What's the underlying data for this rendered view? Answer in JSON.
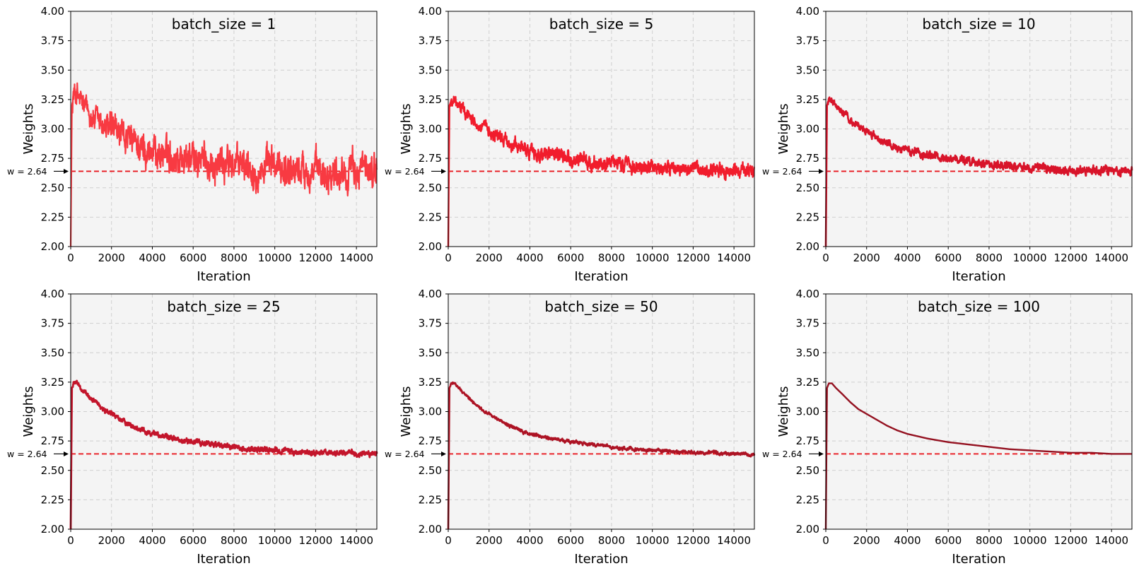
{
  "chart_data": [
    {
      "type": "line",
      "title": "batch_size = 1",
      "xlabel": "Iteration",
      "ylabel": "Weights",
      "xlim": [
        0,
        15000
      ],
      "ylim": [
        2.0,
        4.0
      ],
      "xticks": [
        "0",
        "2000",
        "4000",
        "6000",
        "8000",
        "10000",
        "12000",
        "14000"
      ],
      "yticks": [
        "2.00",
        "2.25",
        "2.50",
        "2.75",
        "3.00",
        "3.25",
        "3.50",
        "3.75",
        "4.00"
      ],
      "grid": true,
      "line_color": "#f83a42",
      "reference": {
        "y": 2.64,
        "label": "w = 2.64",
        "color": "#e8181e"
      },
      "series": [
        {
          "x": [
            0,
            60,
            150,
            300,
            500,
            800,
            1200,
            1600,
            2000,
            2500,
            3000,
            3500,
            4000,
            4500,
            5000,
            6000,
            7000,
            8000,
            9000,
            10000,
            11000,
            12000,
            13000,
            14000,
            15000
          ],
          "y": [
            2.0,
            3.2,
            3.3,
            3.3,
            3.22,
            3.15,
            3.08,
            3.02,
            2.98,
            2.93,
            2.88,
            2.84,
            2.81,
            2.79,
            2.77,
            2.74,
            2.72,
            2.7,
            2.68,
            2.67,
            2.66,
            2.65,
            2.65,
            2.64,
            2.64
          ]
        }
      ]
    },
    {
      "type": "line",
      "title": "batch_size = 5",
      "xlabel": "Iteration",
      "ylabel": "Weights",
      "xlim": [
        0,
        15000
      ],
      "ylim": [
        2.0,
        4.0
      ],
      "xticks": [
        "0",
        "2000",
        "4000",
        "6000",
        "8000",
        "10000",
        "12000",
        "14000"
      ],
      "yticks": [
        "2.00",
        "2.25",
        "2.50",
        "2.75",
        "3.00",
        "3.25",
        "3.50",
        "3.75",
        "4.00"
      ],
      "grid": true,
      "line_color": "#f11c2c",
      "reference": {
        "y": 2.64,
        "label": "w = 2.64",
        "color": "#e8181e"
      },
      "series": [
        {
          "x": [
            0,
            60,
            150,
            300,
            500,
            800,
            1200,
            1600,
            2000,
            2500,
            3000,
            3500,
            4000,
            4500,
            5000,
            6000,
            7000,
            8000,
            9000,
            10000,
            11000,
            12000,
            13000,
            14000,
            15000
          ],
          "y": [
            2.0,
            3.2,
            3.24,
            3.24,
            3.2,
            3.15,
            3.08,
            3.02,
            2.98,
            2.93,
            2.88,
            2.84,
            2.81,
            2.79,
            2.77,
            2.74,
            2.72,
            2.7,
            2.68,
            2.67,
            2.66,
            2.65,
            2.65,
            2.64,
            2.64
          ]
        }
      ]
    },
    {
      "type": "line",
      "title": "batch_size = 10",
      "xlabel": "Iteration",
      "ylabel": "Weights",
      "xlim": [
        0,
        15000
      ],
      "ylim": [
        2.0,
        4.0
      ],
      "xticks": [
        "0",
        "2000",
        "4000",
        "6000",
        "8000",
        "10000",
        "12000",
        "14000"
      ],
      "yticks": [
        "2.00",
        "2.25",
        "2.50",
        "2.75",
        "3.00",
        "3.25",
        "3.50",
        "3.75",
        "4.00"
      ],
      "grid": true,
      "line_color": "#d8142a",
      "reference": {
        "y": 2.64,
        "label": "w = 2.64",
        "color": "#e8181e"
      },
      "series": [
        {
          "x": [
            0,
            60,
            150,
            300,
            500,
            800,
            1200,
            1600,
            2000,
            2500,
            3000,
            3500,
            4000,
            4500,
            5000,
            6000,
            7000,
            8000,
            9000,
            10000,
            11000,
            12000,
            13000,
            14000,
            15000
          ],
          "y": [
            2.0,
            3.2,
            3.24,
            3.24,
            3.2,
            3.15,
            3.08,
            3.02,
            2.98,
            2.93,
            2.88,
            2.84,
            2.81,
            2.79,
            2.77,
            2.74,
            2.72,
            2.7,
            2.68,
            2.67,
            2.66,
            2.65,
            2.65,
            2.64,
            2.64
          ]
        }
      ]
    },
    {
      "type": "line",
      "title": "batch_size = 25",
      "xlabel": "Iteration",
      "ylabel": "Weights",
      "xlim": [
        0,
        15000
      ],
      "ylim": [
        2.0,
        4.0
      ],
      "xticks": [
        "0",
        "2000",
        "4000",
        "6000",
        "8000",
        "10000",
        "12000",
        "14000"
      ],
      "yticks": [
        "2.00",
        "2.25",
        "2.50",
        "2.75",
        "3.00",
        "3.25",
        "3.50",
        "3.75",
        "4.00"
      ],
      "grid": true,
      "line_color": "#c3152b",
      "reference": {
        "y": 2.64,
        "label": "w = 2.64",
        "color": "#e8181e"
      },
      "series": [
        {
          "x": [
            0,
            60,
            150,
            300,
            500,
            800,
            1200,
            1600,
            2000,
            2500,
            3000,
            3500,
            4000,
            4500,
            5000,
            6000,
            7000,
            8000,
            9000,
            10000,
            11000,
            12000,
            13000,
            14000,
            15000
          ],
          "y": [
            2.0,
            3.2,
            3.24,
            3.24,
            3.2,
            3.15,
            3.08,
            3.02,
            2.98,
            2.93,
            2.88,
            2.84,
            2.81,
            2.79,
            2.77,
            2.74,
            2.72,
            2.7,
            2.68,
            2.67,
            2.66,
            2.65,
            2.65,
            2.64,
            2.64
          ]
        }
      ]
    },
    {
      "type": "line",
      "title": "batch_size = 50",
      "xlabel": "Iteration",
      "ylabel": "Weights",
      "xlim": [
        0,
        15000
      ],
      "ylim": [
        2.0,
        4.0
      ],
      "xticks": [
        "0",
        "2000",
        "4000",
        "6000",
        "8000",
        "10000",
        "12000",
        "14000"
      ],
      "yticks": [
        "2.00",
        "2.25",
        "2.50",
        "2.75",
        "3.00",
        "3.25",
        "3.50",
        "3.75",
        "4.00"
      ],
      "grid": true,
      "line_color": "#ad1324",
      "reference": {
        "y": 2.64,
        "label": "w = 2.64",
        "color": "#e8181e"
      },
      "series": [
        {
          "x": [
            0,
            60,
            150,
            300,
            500,
            800,
            1200,
            1600,
            2000,
            2500,
            3000,
            3500,
            4000,
            4500,
            5000,
            6000,
            7000,
            8000,
            9000,
            10000,
            11000,
            12000,
            13000,
            14000,
            15000
          ],
          "y": [
            2.0,
            3.2,
            3.24,
            3.24,
            3.2,
            3.15,
            3.08,
            3.02,
            2.98,
            2.93,
            2.88,
            2.84,
            2.81,
            2.79,
            2.77,
            2.74,
            2.72,
            2.7,
            2.68,
            2.67,
            2.66,
            2.65,
            2.65,
            2.64,
            2.64
          ]
        }
      ]
    },
    {
      "type": "line",
      "title": "batch_size = 100",
      "xlabel": "Iteration",
      "ylabel": "Weights",
      "xlim": [
        0,
        15000
      ],
      "ylim": [
        2.0,
        4.0
      ],
      "xticks": [
        "0",
        "2000",
        "4000",
        "6000",
        "8000",
        "10000",
        "12000",
        "14000"
      ],
      "yticks": [
        "2.00",
        "2.25",
        "2.50",
        "2.75",
        "3.00",
        "3.25",
        "3.50",
        "3.75",
        "4.00"
      ],
      "grid": true,
      "line_color": "#941120",
      "reference": {
        "y": 2.64,
        "label": "w = 2.64",
        "color": "#e8181e"
      },
      "series": [
        {
          "x": [
            0,
            60,
            150,
            300,
            500,
            800,
            1200,
            1600,
            2000,
            2500,
            3000,
            3500,
            4000,
            4500,
            5000,
            6000,
            7000,
            8000,
            9000,
            10000,
            11000,
            12000,
            13000,
            14000,
            15000
          ],
          "y": [
            2.0,
            3.2,
            3.24,
            3.24,
            3.2,
            3.15,
            3.08,
            3.02,
            2.98,
            2.93,
            2.88,
            2.84,
            2.81,
            2.79,
            2.77,
            2.74,
            2.72,
            2.7,
            2.68,
            2.67,
            2.66,
            2.65,
            2.65,
            2.64,
            2.64
          ]
        }
      ]
    }
  ]
}
